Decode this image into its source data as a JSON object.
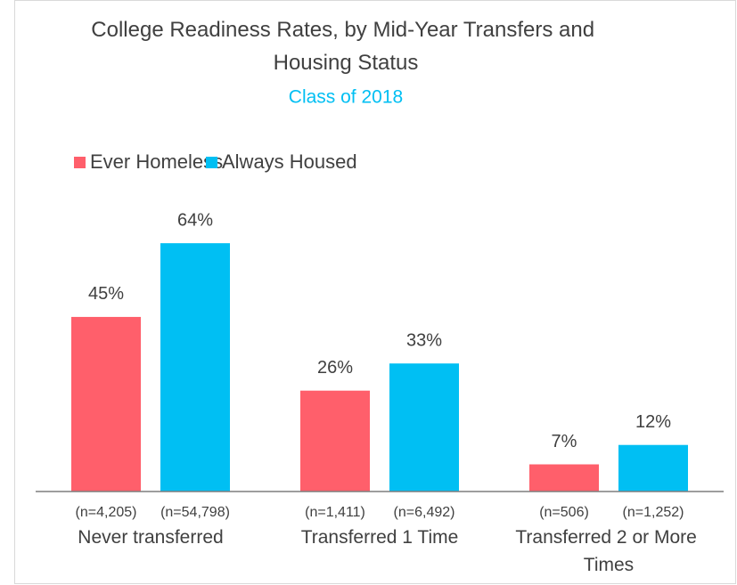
{
  "chart_data": {
    "type": "bar",
    "title": "College Readiness Rates, by Mid-Year Transfers and Housing Status",
    "subtitle": "Class of 2018",
    "categories": [
      "Never transferred",
      "Transferred 1 Time",
      "Transferred 2 or More Times"
    ],
    "series": [
      {
        "name": "Ever Homeless",
        "color": "#ff5f6b",
        "values": [
          45,
          26,
          7
        ],
        "value_labels": [
          "45%",
          "26%",
          "7%"
        ],
        "n_labels": [
          "(n=4,205)",
          "(n=1,411)",
          "(n=506)"
        ]
      },
      {
        "name": "Always Housed",
        "color": "#00bff3",
        "values": [
          64,
          33,
          12
        ],
        "value_labels": [
          "64%",
          "33%",
          "12%"
        ],
        "n_labels": [
          "(n=54,798)",
          "(n=6,492)",
          "(n=1,252)"
        ]
      }
    ],
    "ylim": [
      0,
      70
    ]
  }
}
